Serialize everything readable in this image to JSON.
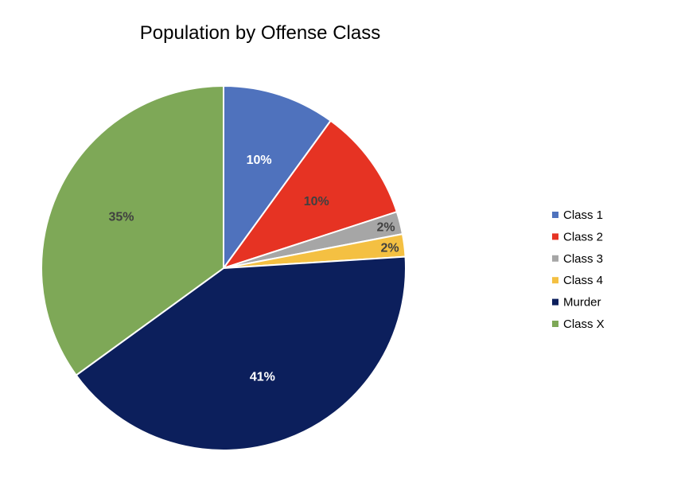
{
  "chart_data": {
    "type": "pie",
    "title": "Population by Offense Class",
    "categories": [
      "Class 1",
      "Class 2",
      "Class 3",
      "Class 4",
      "Murder",
      "Class X"
    ],
    "values": [
      10,
      10,
      2,
      2,
      41,
      35
    ],
    "labels": [
      "10%",
      "10%",
      "2%",
      "2%",
      "41%",
      "35%"
    ],
    "colors": [
      "#4f72bd",
      "#e63323",
      "#a6a6a6",
      "#f4c042",
      "#0c1f5c",
      "#7ea857"
    ],
    "label_colors": [
      "#ffffff",
      "#404040",
      "#404040",
      "#404040",
      "#ffffff",
      "#404040"
    ],
    "legend_position": "right"
  }
}
